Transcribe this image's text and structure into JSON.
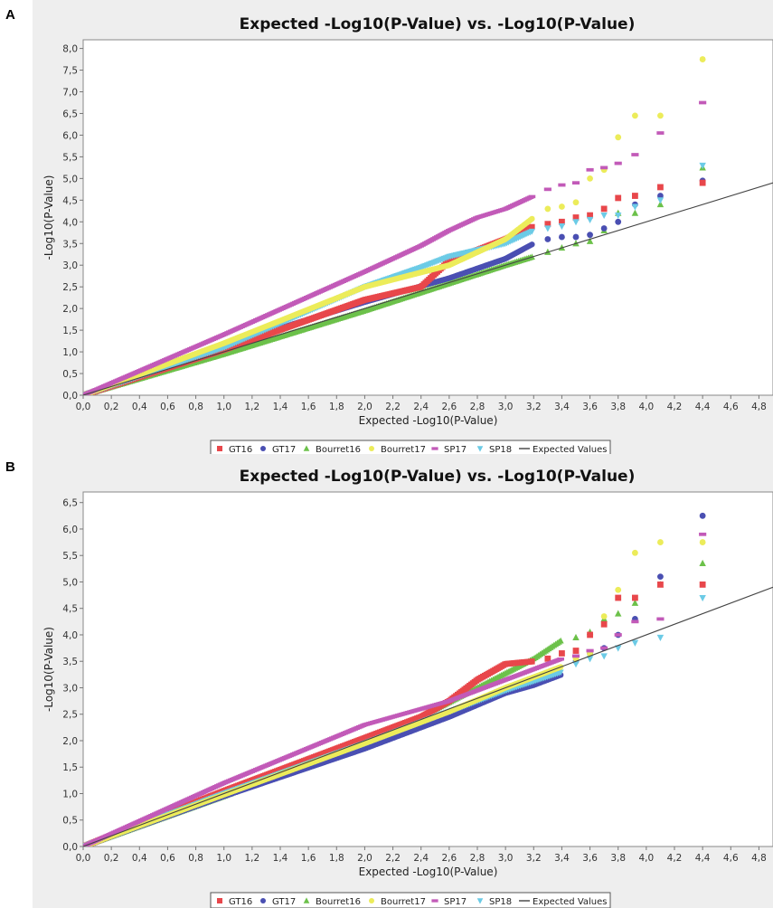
{
  "panels": [
    {
      "letter": "A"
    },
    {
      "letter": "B"
    }
  ],
  "colors": {
    "GT16": "#e8474b",
    "GT17": "#4a4fb2",
    "Bourret16": "#6cc14a",
    "Bourret17": "#ecec5a",
    "SP17": "#c25ab8",
    "SP18": "#6ccbe6",
    "Expected": "#444444"
  },
  "chart_data": [
    {
      "type": "scatter",
      "title": "Expected -Log10(P-Value) vs. -Log10(P-Value)",
      "xlabel": "Expected -Log10(P-Value)",
      "ylabel": "-Log10(P-Value)",
      "xlim": [
        0,
        4.9
      ],
      "ylim": [
        0,
        8.2
      ],
      "xticks": [
        "0,0",
        "0,2",
        "0,4",
        "0,6",
        "0,8",
        "1,0",
        "1,2",
        "1,4",
        "1,6",
        "1,8",
        "2,0",
        "2,2",
        "2,4",
        "2,6",
        "2,8",
        "3,0",
        "3,2",
        "3,4",
        "3,6",
        "3,8",
        "4,0",
        "4,2",
        "4,4",
        "4,6",
        "4,8"
      ],
      "yticks": [
        "0,0",
        "0,5",
        "1,0",
        "1,5",
        "2,0",
        "2,5",
        "3,0",
        "3,5",
        "4,0",
        "4,5",
        "5,0",
        "5,5",
        "6,0",
        "6,5",
        "7,0",
        "7,5",
        "8,0"
      ],
      "legend": [
        "GT16",
        "GT17",
        "Bourret16",
        "Bourret17",
        "SP17",
        "SP18",
        "Expected Values"
      ],
      "expected_line": [
        [
          0,
          0
        ],
        [
          4.9,
          4.9
        ]
      ],
      "series": [
        {
          "name": "GT16",
          "marker": "square",
          "curve": [
            [
              0,
              0
            ],
            [
              1,
              1.05
            ],
            [
              2,
              2.2
            ],
            [
              2.4,
              2.5
            ],
            [
              2.6,
              3.1
            ],
            [
              3.0,
              3.6
            ],
            [
              3.2,
              3.9
            ]
          ],
          "points": [
            [
              3.3,
              3.95
            ],
            [
              3.4,
              4.0
            ],
            [
              3.5,
              4.1
            ],
            [
              3.6,
              4.15
            ],
            [
              3.7,
              4.3
            ],
            [
              3.8,
              4.55
            ],
            [
              3.92,
              4.6
            ],
            [
              4.1,
              4.8
            ],
            [
              4.4,
              4.9
            ]
          ]
        },
        {
          "name": "GT17",
          "marker": "circle",
          "curve": [
            [
              0,
              0
            ],
            [
              1,
              1.15
            ],
            [
              2,
              2.15
            ],
            [
              2.6,
              2.7
            ],
            [
              3.0,
              3.15
            ],
            [
              3.2,
              3.5
            ]
          ],
          "points": [
            [
              3.3,
              3.6
            ],
            [
              3.4,
              3.65
            ],
            [
              3.5,
              3.65
            ],
            [
              3.6,
              3.7
            ],
            [
              3.7,
              3.85
            ],
            [
              3.8,
              4.0
            ],
            [
              3.92,
              4.4
            ],
            [
              4.1,
              4.6
            ],
            [
              4.4,
              4.95
            ]
          ]
        },
        {
          "name": "Bourret16",
          "marker": "triangle",
          "curve": [
            [
              0,
              0
            ],
            [
              1,
              0.95
            ],
            [
              2,
              1.95
            ],
            [
              3.0,
              3.0
            ],
            [
              3.2,
              3.2
            ]
          ],
          "points": [
            [
              3.3,
              3.3
            ],
            [
              3.4,
              3.4
            ],
            [
              3.5,
              3.5
            ],
            [
              3.6,
              3.55
            ],
            [
              3.7,
              3.8
            ],
            [
              3.8,
              4.2
            ],
            [
              3.92,
              4.2
            ],
            [
              4.1,
              4.4
            ],
            [
              4.4,
              5.25
            ]
          ]
        },
        {
          "name": "Bourret17",
          "marker": "circle",
          "curve": [
            [
              0,
              0
            ],
            [
              1,
              1.2
            ],
            [
              2,
              2.5
            ],
            [
              2.6,
              3.0
            ],
            [
              3.0,
              3.6
            ],
            [
              3.2,
              4.1
            ]
          ],
          "points": [
            [
              3.3,
              4.3
            ],
            [
              3.4,
              4.35
            ],
            [
              3.5,
              4.45
            ],
            [
              3.6,
              5.0
            ],
            [
              3.7,
              5.2
            ],
            [
              3.8,
              5.95
            ],
            [
              3.92,
              6.45
            ],
            [
              4.1,
              6.45
            ],
            [
              4.4,
              7.75
            ]
          ]
        },
        {
          "name": "SP17",
          "marker": "dash",
          "curve": [
            [
              0,
              0
            ],
            [
              1,
              1.4
            ],
            [
              2,
              2.85
            ],
            [
              2.4,
              3.45
            ],
            [
              2.6,
              3.8
            ],
            [
              2.8,
              4.1
            ],
            [
              3.0,
              4.3
            ],
            [
              3.2,
              4.6
            ]
          ],
          "points": [
            [
              3.3,
              4.75
            ],
            [
              3.4,
              4.85
            ],
            [
              3.5,
              4.9
            ],
            [
              3.6,
              5.2
            ],
            [
              3.7,
              5.25
            ],
            [
              3.8,
              5.35
            ],
            [
              3.92,
              5.55
            ],
            [
              4.1,
              6.05
            ],
            [
              4.4,
              6.75
            ]
          ]
        },
        {
          "name": "SP18",
          "marker": "triangle-down",
          "curve": [
            [
              0,
              0
            ],
            [
              1,
              1.1
            ],
            [
              2,
              2.5
            ],
            [
              2.4,
              2.95
            ],
            [
              2.6,
              3.2
            ],
            [
              3.0,
              3.5
            ],
            [
              3.2,
              3.8
            ]
          ],
          "points": [
            [
              3.3,
              3.85
            ],
            [
              3.4,
              3.9
            ],
            [
              3.5,
              4.0
            ],
            [
              3.6,
              4.05
            ],
            [
              3.7,
              4.15
            ],
            [
              3.8,
              4.15
            ],
            [
              3.92,
              4.35
            ],
            [
              4.1,
              4.5
            ],
            [
              4.4,
              5.3
            ]
          ]
        }
      ]
    },
    {
      "type": "scatter",
      "title": "Expected -Log10(P-Value) vs. -Log10(P-Value)",
      "xlabel": "Expected -Log10(P-Value)",
      "ylabel": "-Log10(P-Value)",
      "xlim": [
        0,
        4.9
      ],
      "ylim": [
        0,
        6.7
      ],
      "xticks": [
        "0,0",
        "0,2",
        "0,4",
        "0,6",
        "0,8",
        "1,0",
        "1,2",
        "1,4",
        "1,6",
        "1,8",
        "2,0",
        "2,2",
        "2,4",
        "2,6",
        "2,8",
        "3,0",
        "3,2",
        "3,4",
        "3,6",
        "3,8",
        "4,0",
        "4,2",
        "4,4",
        "4,6",
        "4,8"
      ],
      "yticks": [
        "0,0",
        "0,5",
        "1,0",
        "1,5",
        "2,0",
        "2,5",
        "3,0",
        "3,5",
        "4,0",
        "4,5",
        "5,0",
        "5,5",
        "6,0",
        "6,5"
      ],
      "legend": [
        "GT16",
        "GT17",
        "Bourret16",
        "Bourret17",
        "SP17",
        "SP18",
        "Expected Values"
      ],
      "expected_line": [
        [
          0,
          0
        ],
        [
          4.9,
          4.9
        ]
      ],
      "series": [
        {
          "name": "GT16",
          "marker": "square",
          "curve": [
            [
              0,
              0
            ],
            [
              1,
              1.05
            ],
            [
              2,
              2.05
            ],
            [
              2.4,
              2.45
            ],
            [
              2.6,
              2.75
            ],
            [
              2.8,
              3.15
            ],
            [
              3.0,
              3.45
            ],
            [
              3.2,
              3.5
            ]
          ],
          "points": [
            [
              3.3,
              3.55
            ],
            [
              3.4,
              3.65
            ],
            [
              3.5,
              3.7
            ],
            [
              3.6,
              4.0
            ],
            [
              3.7,
              4.2
            ],
            [
              3.8,
              4.7
            ],
            [
              3.92,
              4.7
            ],
            [
              4.1,
              4.95
            ],
            [
              4.4,
              4.95
            ]
          ]
        },
        {
          "name": "GT17",
          "marker": "circle",
          "curve": [
            [
              0,
              0
            ],
            [
              1,
              0.95
            ],
            [
              2,
              1.85
            ],
            [
              2.6,
              2.45
            ],
            [
              3.0,
              2.9
            ],
            [
              3.2,
              3.05
            ],
            [
              3.4,
              3.25
            ]
          ],
          "points": [
            [
              3.5,
              3.5
            ],
            [
              3.6,
              3.65
            ],
            [
              3.7,
              3.75
            ],
            [
              3.8,
              4.0
            ],
            [
              3.92,
              4.3
            ],
            [
              4.1,
              5.1
            ],
            [
              4.4,
              6.25
            ]
          ]
        },
        {
          "name": "Bourret16",
          "marker": "triangle",
          "curve": [
            [
              0,
              0
            ],
            [
              1,
              0.95
            ],
            [
              2,
              1.95
            ],
            [
              2.4,
              2.45
            ],
            [
              2.8,
              3.0
            ],
            [
              3.2,
              3.55
            ],
            [
              3.4,
              3.9
            ]
          ],
          "points": [
            [
              3.5,
              3.95
            ],
            [
              3.6,
              4.05
            ],
            [
              3.7,
              4.3
            ],
            [
              3.8,
              4.4
            ],
            [
              3.92,
              4.6
            ],
            [
              4.1,
              4.95
            ],
            [
              4.4,
              5.35
            ]
          ]
        },
        {
          "name": "Bourret17",
          "marker": "circle",
          "curve": [
            [
              0,
              0
            ],
            [
              1,
              0.98
            ],
            [
              2,
              1.95
            ],
            [
              2.6,
              2.55
            ],
            [
              3.0,
              3.0
            ],
            [
              3.4,
              3.4
            ]
          ],
          "points": [
            [
              3.5,
              3.55
            ],
            [
              3.6,
              3.65
            ],
            [
              3.7,
              4.35
            ],
            [
              3.8,
              4.85
            ],
            [
              3.92,
              5.55
            ],
            [
              4.1,
              5.75
            ],
            [
              4.4,
              5.75
            ]
          ]
        },
        {
          "name": "SP17",
          "marker": "dash",
          "curve": [
            [
              0,
              0
            ],
            [
              1,
              1.2
            ],
            [
              2,
              2.3
            ],
            [
              2.6,
              2.75
            ],
            [
              3.0,
              3.15
            ],
            [
              3.4,
              3.55
            ]
          ],
          "points": [
            [
              3.5,
              3.6
            ],
            [
              3.6,
              3.7
            ],
            [
              3.7,
              3.75
            ],
            [
              3.8,
              4.0
            ],
            [
              3.92,
              4.25
            ],
            [
              4.1,
              4.3
            ],
            [
              4.4,
              5.9
            ]
          ]
        },
        {
          "name": "SP18",
          "marker": "triangle-down",
          "curve": [
            [
              0,
              0
            ],
            [
              1,
              1.0
            ],
            [
              2,
              1.95
            ],
            [
              2.6,
              2.55
            ],
            [
              3.0,
              2.95
            ],
            [
              3.4,
              3.3
            ]
          ],
          "points": [
            [
              3.5,
              3.45
            ],
            [
              3.6,
              3.55
            ],
            [
              3.7,
              3.6
            ],
            [
              3.8,
              3.75
            ],
            [
              3.92,
              3.85
            ],
            [
              4.1,
              3.95
            ],
            [
              4.4,
              4.7
            ]
          ]
        }
      ]
    }
  ]
}
